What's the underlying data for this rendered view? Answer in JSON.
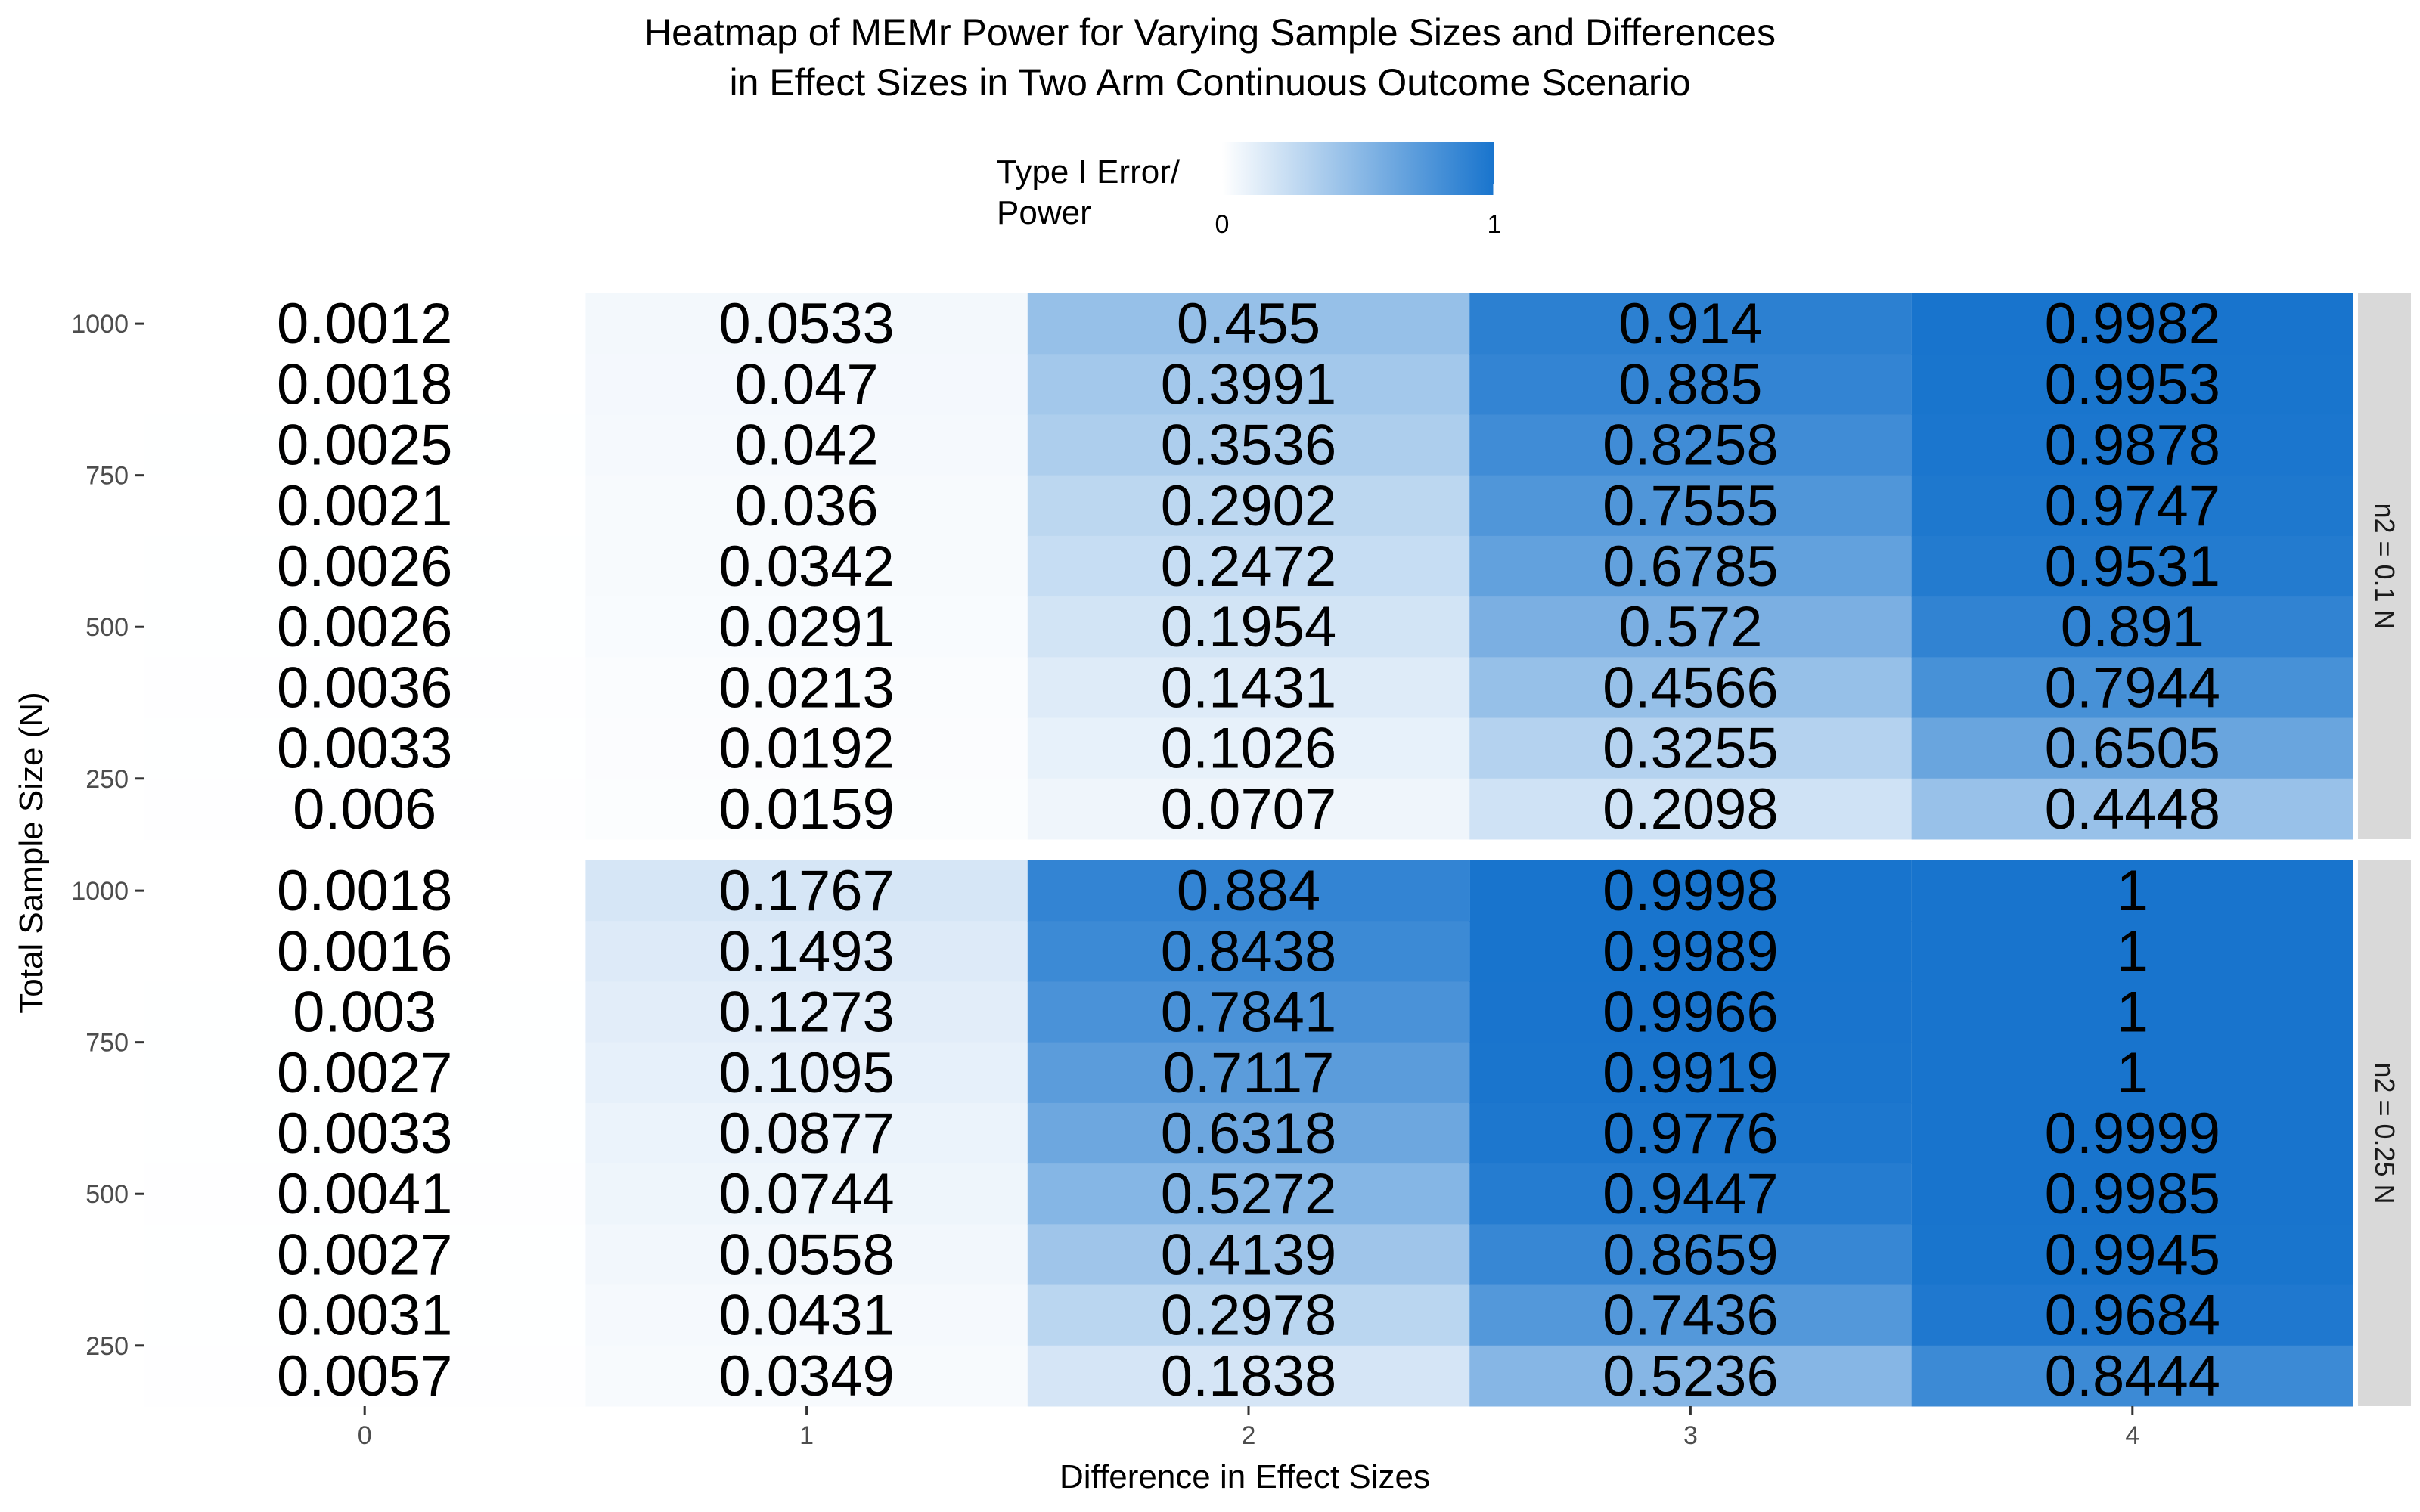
{
  "chart_data": {
    "type": "heatmap",
    "title_lines": [
      "Heatmap of MEMr Power for Varying Sample Sizes and Differences",
      "in Effect Sizes in Two Arm Continuous Outcome Scenario"
    ],
    "xlabel": "Difference in Effect Sizes",
    "ylabel": "Total Sample Size (N)",
    "legend": {
      "title_lines": [
        "Type I Error/",
        "Power"
      ],
      "min_label": "0",
      "max_label": "1",
      "low_color": "#ffffff",
      "high_color": "#1874cd",
      "placement": "top"
    },
    "x_values": [
      0,
      1,
      2,
      3,
      4
    ],
    "x_tick_labels": [
      "0",
      "1",
      "2",
      "3",
      "4"
    ],
    "x_range": [
      -0.5,
      4.5
    ],
    "y_ticks": [
      250,
      500,
      750,
      1000
    ],
    "y_tick_labels": [
      "250",
      "500",
      "750",
      "1000"
    ],
    "y_range": [
      150,
      1050
    ],
    "y_rows": [
      1000,
      900,
      800,
      700,
      600,
      500,
      400,
      300,
      200
    ],
    "grid": true,
    "colors": {
      "panel_background": "#ebebeb",
      "grid_line": "#ffffff",
      "strip_background": "#d9d9d9",
      "axis_text": "#4d4d4d",
      "cell_text": "#000000"
    },
    "panels": [
      {
        "strip_label": "n2 = 0.1 N",
        "columns": [
          {
            "x": 0,
            "values": [
              "0.0012",
              "0.0018",
              "0.0025",
              "0.0021",
              "0.0026",
              "0.0026",
              "0.0036",
              "0.0033",
              "0.006"
            ]
          },
          {
            "x": 1,
            "values": [
              "0.0533",
              "0.047",
              "0.042",
              "0.036",
              "0.0342",
              "0.0291",
              "0.0213",
              "0.0192",
              "0.0159"
            ]
          },
          {
            "x": 2,
            "values": [
              "0.455",
              "0.3991",
              "0.3536",
              "0.2902",
              "0.2472",
              "0.1954",
              "0.1431",
              "0.1026",
              "0.0707"
            ]
          },
          {
            "x": 3,
            "values": [
              "0.914",
              "0.885",
              "0.8258",
              "0.7555",
              "0.6785",
              "0.572",
              "0.4566",
              "0.3255",
              "0.2098"
            ]
          },
          {
            "x": 4,
            "values": [
              "0.9982",
              "0.9953",
              "0.9878",
              "0.9747",
              "0.9531",
              "0.891",
              "0.7944",
              "0.6505",
              "0.4448"
            ]
          }
        ]
      },
      {
        "strip_label": "n2 = 0.25 N",
        "columns": [
          {
            "x": 0,
            "values": [
              "0.0018",
              "0.0016",
              "0.003",
              "0.0027",
              "0.0033",
              "0.0041",
              "0.0027",
              "0.0031",
              "0.0057"
            ]
          },
          {
            "x": 1,
            "values": [
              "0.1767",
              "0.1493",
              "0.1273",
              "0.1095",
              "0.0877",
              "0.0744",
              "0.0558",
              "0.0431",
              "0.0349"
            ]
          },
          {
            "x": 2,
            "values": [
              "0.884",
              "0.8438",
              "0.7841",
              "0.7117",
              "0.6318",
              "0.5272",
              "0.4139",
              "0.2978",
              "0.1838"
            ]
          },
          {
            "x": 3,
            "values": [
              "0.9998",
              "0.9989",
              "0.9966",
              "0.9919",
              "0.9776",
              "0.9447",
              "0.8659",
              "0.7436",
              "0.5236"
            ]
          },
          {
            "x": 4,
            "values": [
              "1",
              "1",
              "1",
              "1",
              "0.9999",
              "0.9985",
              "0.9945",
              "0.9684",
              "0.8444"
            ]
          }
        ]
      }
    ]
  }
}
